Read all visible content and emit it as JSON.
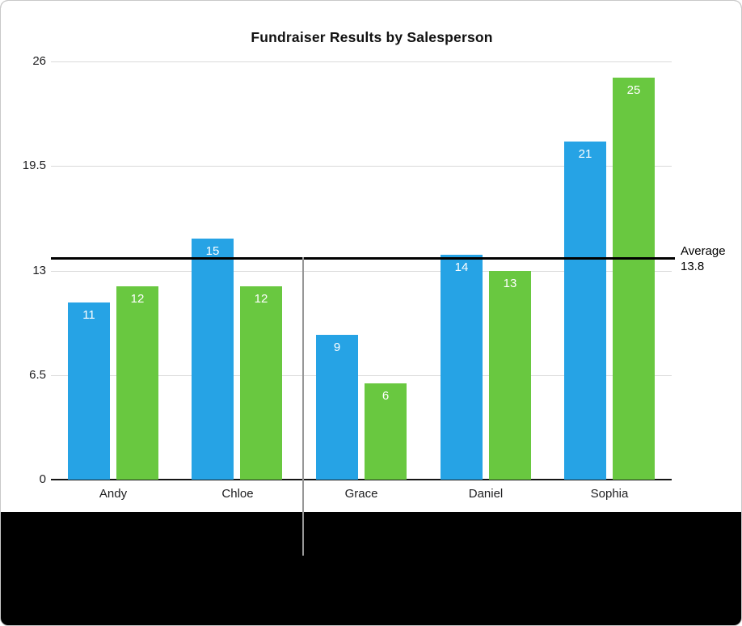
{
  "chart_data": {
    "type": "bar",
    "title": "Fundraiser Results by Salesperson",
    "categories": [
      "Andy",
      "Chloe",
      "Grace",
      "Daniel",
      "Sophia"
    ],
    "series": [
      {
        "name": "blue",
        "color": "#26A3E5",
        "values": [
          11,
          15,
          9,
          14,
          21
        ]
      },
      {
        "name": "green",
        "color": "#69C840",
        "values": [
          12,
          12,
          6,
          13,
          25
        ]
      }
    ],
    "ylim": [
      0,
      26
    ],
    "y_ticks": [
      0,
      6.5,
      13,
      19.5,
      26
    ],
    "grid": true,
    "legend_position": "none",
    "bar_value_labels": true,
    "average_line": {
      "value": 13.8,
      "label_lines": [
        "Average",
        "13.8"
      ],
      "color": "#000000"
    }
  },
  "colors": {
    "grid": "#dadada",
    "axis": "#151515",
    "pointer_line": "#979797",
    "panel_bg": "#ffffff",
    "frame_bg": "#000000"
  }
}
